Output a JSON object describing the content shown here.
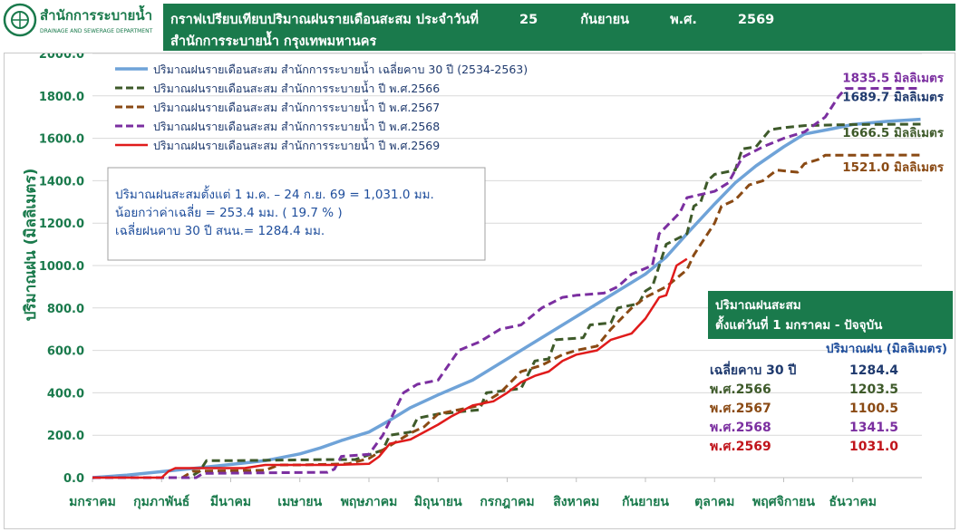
{
  "header": {
    "org_name_th": "สำนักการระบายน้ำ",
    "org_name_en": "DRAINAGE AND SEWERAGE DEPARTMENT",
    "title_prefix": "กราฟเปรียบเทียบปริมาณฝนรายเดือนสะสม ประจำวันที่",
    "title_day": "25",
    "title_month": "กันยายน",
    "title_era": "พ.ศ.",
    "title_year": "2569",
    "subtitle": "สำนักการระบายน้ำ กรุงเทพมหานคร"
  },
  "colors": {
    "avg30": "#6fa3d8",
    "y2566": "#3e5a2a",
    "y2567": "#8a4a14",
    "y2568": "#7b2fa0",
    "y2569": "#e01b1b",
    "brand_green": "#1a7a4c"
  },
  "chart_data": {
    "type": "line",
    "ylabel": "ปริมาณฝน (มิลลิเมตร)",
    "ylim": [
      0,
      2000
    ],
    "yticks": [
      "0.0",
      "200.0",
      "400.0",
      "600.0",
      "800.0",
      "1000.0",
      "1200.0",
      "1400.0",
      "1600.0",
      "1800.0",
      "2000.0"
    ],
    "grid": true,
    "categories": [
      "มกราคม",
      "กุมภาพันธ์",
      "มีนาคม",
      "เมษายน",
      "พฤษภาคม",
      "มิถุนายน",
      "กรกฎาคม",
      "สิงหาคม",
      "กันยายน",
      "ตุลาคม",
      "พฤศจิกายน",
      "ธันวาคม"
    ],
    "x_range_months": [
      0,
      12
    ],
    "legend_position": "top-left",
    "series": [
      {
        "key": "avg30",
        "name": "ปริมาณฝนรายเดือนสะสม สำนักการระบายน้ำ เฉลี่ยคาบ 30 ปี (2534-2563)",
        "style": "solid-thick",
        "end_label": "1689.7 มิลลิเมตร",
        "points": [
          [
            0,
            0
          ],
          [
            0.5,
            12
          ],
          [
            1,
            28
          ],
          [
            1.5,
            45
          ],
          [
            2,
            62
          ],
          [
            2.5,
            80
          ],
          [
            3,
            112
          ],
          [
            3.3,
            140
          ],
          [
            3.6,
            175
          ],
          [
            4,
            215
          ],
          [
            4.3,
            270
          ],
          [
            4.6,
            330
          ],
          [
            5,
            390
          ],
          [
            5.5,
            460
          ],
          [
            6,
            560
          ],
          [
            6.5,
            660
          ],
          [
            7,
            760
          ],
          [
            7.5,
            860
          ],
          [
            8,
            960
          ],
          [
            8.3,
            1040
          ],
          [
            8.6,
            1150
          ],
          [
            9,
            1290
          ],
          [
            9.3,
            1390
          ],
          [
            9.6,
            1470
          ],
          [
            10,
            1560
          ],
          [
            10.3,
            1620
          ],
          [
            10.7,
            1645
          ],
          [
            11,
            1665
          ],
          [
            11.5,
            1680
          ],
          [
            11.98,
            1689.7
          ]
        ]
      },
      {
        "key": "y2566",
        "name": "ปริมาณฝนรายเดือนสะสม สำนักการระบายน้ำ ปี พ.ศ.2566",
        "style": "dashed",
        "end_label": "1666.5 มิลลิเมตร",
        "points": [
          [
            0,
            0
          ],
          [
            1.4,
            0
          ],
          [
            1.55,
            30
          ],
          [
            1.65,
            80
          ],
          [
            2,
            80
          ],
          [
            3.4,
            85
          ],
          [
            3.8,
            85
          ],
          [
            4.2,
            130
          ],
          [
            4.3,
            200
          ],
          [
            4.6,
            215
          ],
          [
            4.7,
            280
          ],
          [
            5,
            300
          ],
          [
            5.3,
            310
          ],
          [
            5.6,
            320
          ],
          [
            5.7,
            400
          ],
          [
            6.2,
            420
          ],
          [
            6.4,
            550
          ],
          [
            6.6,
            560
          ],
          [
            6.7,
            650
          ],
          [
            7.1,
            660
          ],
          [
            7.2,
            720
          ],
          [
            7.5,
            730
          ],
          [
            7.6,
            800
          ],
          [
            7.9,
            820
          ],
          [
            8,
            880
          ],
          [
            8.1,
            900
          ],
          [
            8.3,
            1100
          ],
          [
            8.6,
            1150
          ],
          [
            8.7,
            1280
          ],
          [
            8.8,
            1300
          ],
          [
            8.9,
            1400
          ],
          [
            9,
            1430
          ],
          [
            9.3,
            1450
          ],
          [
            9.4,
            1550
          ],
          [
            9.6,
            1560
          ],
          [
            9.8,
            1640
          ],
          [
            10,
            1650
          ],
          [
            10.3,
            1660
          ],
          [
            11,
            1665
          ],
          [
            11.98,
            1666.5
          ]
        ]
      },
      {
        "key": "y2567",
        "name": "ปริมาณฝนรายเดือนสะสม สำนักการระบายน้ำ ปี พ.ศ.2567",
        "style": "dashed",
        "end_label": "1521.0 มิลลิเมตร",
        "points": [
          [
            0,
            0
          ],
          [
            1.3,
            0
          ],
          [
            1.45,
            30
          ],
          [
            2.5,
            35
          ],
          [
            2.7,
            60
          ],
          [
            3,
            60
          ],
          [
            3.7,
            65
          ],
          [
            4,
            90
          ],
          [
            4.3,
            150
          ],
          [
            4.6,
            210
          ],
          [
            4.8,
            240
          ],
          [
            5,
            300
          ],
          [
            5.3,
            320
          ],
          [
            5.6,
            340
          ],
          [
            5.9,
            400
          ],
          [
            6.2,
            500
          ],
          [
            6.5,
            530
          ],
          [
            6.8,
            580
          ],
          [
            7,
            600
          ],
          [
            7.3,
            620
          ],
          [
            7.5,
            700
          ],
          [
            7.8,
            800
          ],
          [
            8,
            850
          ],
          [
            8.3,
            900
          ],
          [
            8.6,
            980
          ],
          [
            8.7,
            1050
          ],
          [
            8.8,
            1100
          ],
          [
            9,
            1200
          ],
          [
            9.1,
            1280
          ],
          [
            9.3,
            1310
          ],
          [
            9.5,
            1380
          ],
          [
            9.7,
            1400
          ],
          [
            9.9,
            1450
          ],
          [
            10.2,
            1440
          ],
          [
            10.3,
            1480
          ],
          [
            10.5,
            1500
          ],
          [
            10.6,
            1520
          ],
          [
            11.98,
            1521
          ]
        ]
      },
      {
        "key": "y2568",
        "name": "ปริมาณฝนรายเดือนสะสม สำนักการระบายน้ำ ปี พ.ศ.2568",
        "style": "dashed",
        "end_label": "1835.5 มิลลิเมตร",
        "points": [
          [
            0,
            0
          ],
          [
            1.5,
            0
          ],
          [
            1.6,
            20
          ],
          [
            3.4,
            25
          ],
          [
            3.5,
            40
          ],
          [
            3.6,
            100
          ],
          [
            4,
            110
          ],
          [
            4.2,
            200
          ],
          [
            4.35,
            300
          ],
          [
            4.5,
            400
          ],
          [
            4.7,
            440
          ],
          [
            5,
            460
          ],
          [
            5.3,
            600
          ],
          [
            5.6,
            640
          ],
          [
            5.9,
            700
          ],
          [
            6.2,
            720
          ],
          [
            6.5,
            800
          ],
          [
            6.8,
            850
          ],
          [
            7,
            860
          ],
          [
            7.4,
            870
          ],
          [
            7.6,
            900
          ],
          [
            7.8,
            960
          ],
          [
            8.1,
            1000
          ],
          [
            8.2,
            1150
          ],
          [
            8.5,
            1250
          ],
          [
            8.6,
            1320
          ],
          [
            9,
            1350
          ],
          [
            9.2,
            1390
          ],
          [
            9.4,
            1510
          ],
          [
            9.7,
            1560
          ],
          [
            10,
            1600
          ],
          [
            10.3,
            1630
          ],
          [
            10.6,
            1700
          ],
          [
            10.8,
            1800
          ],
          [
            10.9,
            1835
          ],
          [
            11.98,
            1835.5
          ]
        ]
      },
      {
        "key": "y2569",
        "name": "ปริมาณฝนรายเดือนสะสม สำนักการระบายน้ำ ปี พ.ศ.2569",
        "style": "solid",
        "end_label": "",
        "points": [
          [
            0,
            0
          ],
          [
            1,
            0
          ],
          [
            1.1,
            30
          ],
          [
            1.2,
            45
          ],
          [
            2.2,
            45
          ],
          [
            2.5,
            60
          ],
          [
            3.5,
            60
          ],
          [
            4,
            65
          ],
          [
            4.15,
            100
          ],
          [
            4.3,
            160
          ],
          [
            4.6,
            180
          ],
          [
            5,
            250
          ],
          [
            5.2,
            290
          ],
          [
            5.5,
            340
          ],
          [
            5.8,
            360
          ],
          [
            6,
            400
          ],
          [
            6.2,
            450
          ],
          [
            6.4,
            480
          ],
          [
            6.6,
            500
          ],
          [
            6.8,
            550
          ],
          [
            7,
            580
          ],
          [
            7.3,
            600
          ],
          [
            7.5,
            650
          ],
          [
            7.8,
            680
          ],
          [
            8,
            750
          ],
          [
            8.2,
            850
          ],
          [
            8.3,
            860
          ],
          [
            8.45,
            1000
          ],
          [
            8.6,
            1031
          ]
        ]
      }
    ]
  },
  "info_box": {
    "line1": "ปริมาณฝนสะสมตั้งแต่ 1 ม.ค. – 24 ก.ย. 69 = 1,031.0 มม.",
    "line2": "น้อยกว่าค่าเฉลี่ย = 253.4 มม. ( 19.7 % )",
    "line3": "เฉลี่ยฝนคาบ 30 ปี สนน.= 1284.4 มม."
  },
  "summary_panel": {
    "title_line1": "ปริมาณฝนสะสม",
    "title_line2": "ตั้งแต่วันที่ 1 มกราคม - ปัจจุบัน",
    "column_header": "ปริมาณฝน (มิลลิเมตร)",
    "rows": [
      {
        "label": "เฉลี่ยคาบ 30 ปี",
        "value": "1284.4",
        "color": "#1f3a6e"
      },
      {
        "label": "พ.ศ.2566",
        "value": "1203.5",
        "color": "#3e5a2a"
      },
      {
        "label": "พ.ศ.2567",
        "value": "1100.5",
        "color": "#8a4a14"
      },
      {
        "label": "พ.ศ.2568",
        "value": "1341.5",
        "color": "#7b2fa0"
      },
      {
        "label": "พ.ศ.2569",
        "value": "1031.0",
        "color": "#c0141b"
      }
    ]
  }
}
